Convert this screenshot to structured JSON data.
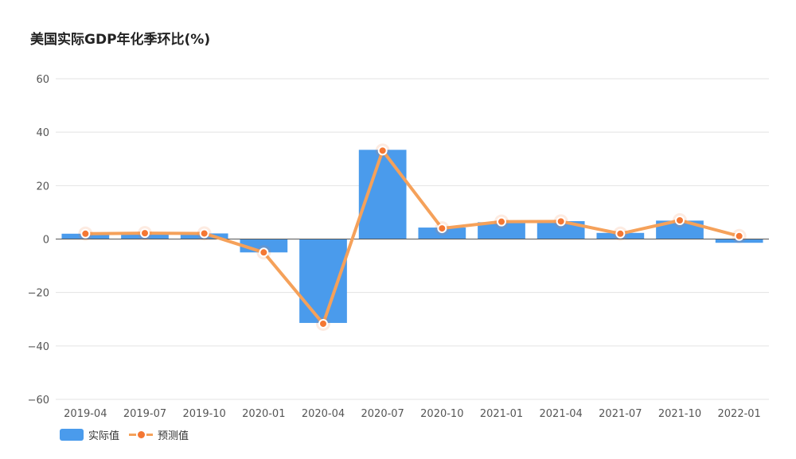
{
  "chart_data": {
    "type": "bar",
    "title": "美国实际GDP年化季环比(%)",
    "categories": [
      "2019-04",
      "2019-07",
      "2019-10",
      "2020-01",
      "2020-04",
      "2020-07",
      "2020-10",
      "2021-01",
      "2021-04",
      "2021-07",
      "2021-10",
      "2022-01"
    ],
    "series": [
      {
        "name": "实际值",
        "type": "bar",
        "color": "#4a9bec",
        "values": [
          2.0,
          2.1,
          2.1,
          -5.0,
          -31.4,
          33.4,
          4.3,
          6.3,
          6.7,
          2.3,
          6.9,
          -1.4
        ]
      },
      {
        "name": "预测值",
        "type": "line",
        "color": "#f5a15a",
        "marker_color": "#f47733",
        "values": [
          2.0,
          2.2,
          2.1,
          -5.0,
          -31.7,
          33.1,
          4.0,
          6.5,
          6.6,
          2.0,
          7.0,
          1.1
        ]
      }
    ],
    "yticks": [
      "60",
      "40",
      "20",
      "0",
      "−20",
      "−40",
      "−60"
    ],
    "ylim": [
      -60,
      60
    ],
    "grid": true,
    "legend": "bottom-left"
  }
}
